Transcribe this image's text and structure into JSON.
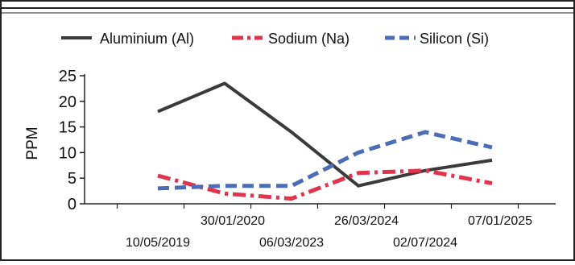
{
  "chart_data": {
    "type": "line",
    "title": "",
    "xlabel": "",
    "ylabel": "PPM",
    "categories": [
      "10/05/2019",
      "30/01/2020",
      "06/03/2023",
      "26/03/2024",
      "02/07/2024",
      "07/01/2025"
    ],
    "ylim": [
      0,
      25
    ],
    "yticks": [
      0,
      5,
      10,
      15,
      20,
      25
    ],
    "grid": false,
    "legend_position": "top",
    "series": [
      {
        "name": "Aluminium (Al)",
        "values": [
          18,
          23.5,
          14,
          3.5,
          6.5,
          8.5
        ],
        "color": "#3a3a3a",
        "dash": "solid"
      },
      {
        "name": "Sodium (Na)",
        "values": [
          5.5,
          2,
          1,
          6,
          6.5,
          4
        ],
        "color": "#e0344e",
        "dash": "dashdot"
      },
      {
        "name": "Silicon (Si)",
        "values": [
          3,
          3.5,
          3.5,
          10,
          14,
          11
        ],
        "color": "#4a6db5",
        "dash": "dashed"
      }
    ]
  }
}
